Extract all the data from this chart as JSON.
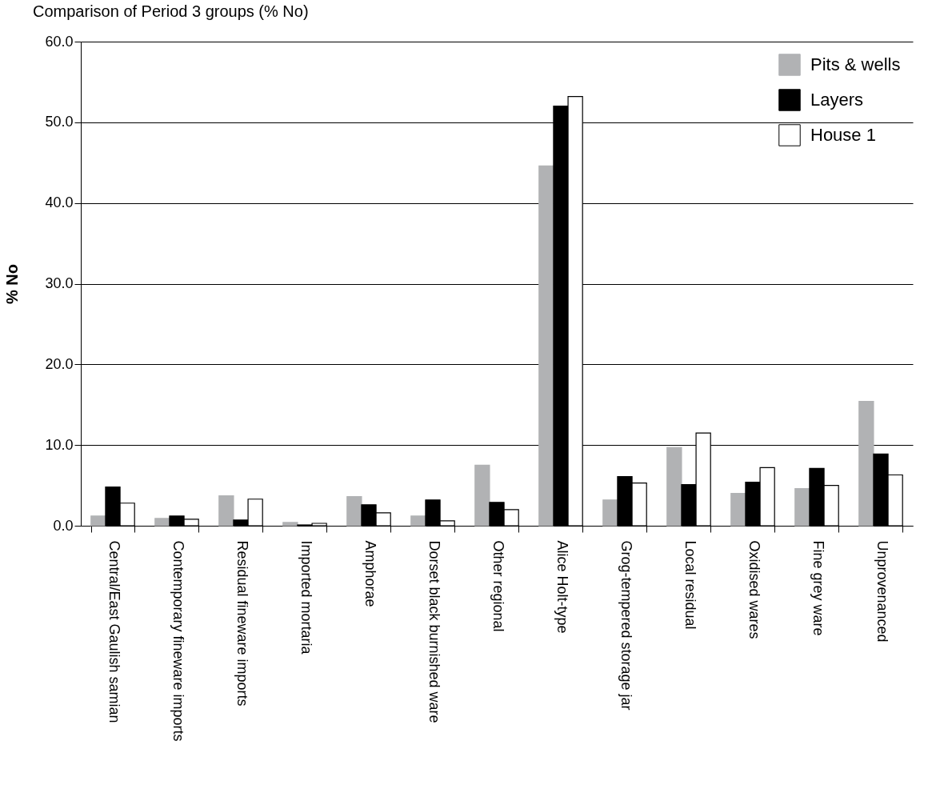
{
  "chart_data": {
    "type": "bar",
    "title": "Comparison of Period 3 groups (% No)",
    "ylabel": "% No",
    "categories": [
      "Central/East Gaulish samian",
      "Contemporary fineware imports",
      "Residual fineware imports",
      "Imported mortaria",
      "Amphorae",
      "Dorset black burnished ware",
      "Other regional",
      "Alice Holt-type",
      "Grog-tempered storage jar",
      "Local residual",
      "Oxidised wares",
      "Fine grey ware",
      "Unprovenanced"
    ],
    "series": [
      {
        "name": "Pits & wells",
        "color": "#b1b2b4",
        "values": [
          1.2,
          0.9,
          3.7,
          0.4,
          3.6,
          1.2,
          7.5,
          44.6,
          3.2,
          9.7,
          4.0,
          4.6,
          15.4
        ]
      },
      {
        "name": "Layers",
        "color": "#000000",
        "values": [
          4.8,
          1.2,
          0.7,
          0.1,
          2.6,
          3.2,
          2.9,
          52.0,
          6.1,
          5.1,
          5.4,
          7.1,
          8.9
        ]
      },
      {
        "name": "House 1",
        "color": "#ffffff",
        "values": [
          2.8,
          0.8,
          3.3,
          0.3,
          1.6,
          0.6,
          2.0,
          53.2,
          5.3,
          11.5,
          7.2,
          5.0,
          6.3
        ]
      }
    ],
    "ylim": [
      0,
      60
    ],
    "yticks": [
      {
        "value": 0,
        "label": "0.0"
      },
      {
        "value": 10,
        "label": "10.0"
      },
      {
        "value": 20,
        "label": "20.0"
      },
      {
        "value": 30,
        "label": "30.0"
      },
      {
        "value": 40,
        "label": "40.0"
      },
      {
        "value": 50,
        "label": "50.0"
      },
      {
        "value": 60,
        "label": "60.0"
      }
    ],
    "grid": "y",
    "legend": "top right"
  }
}
